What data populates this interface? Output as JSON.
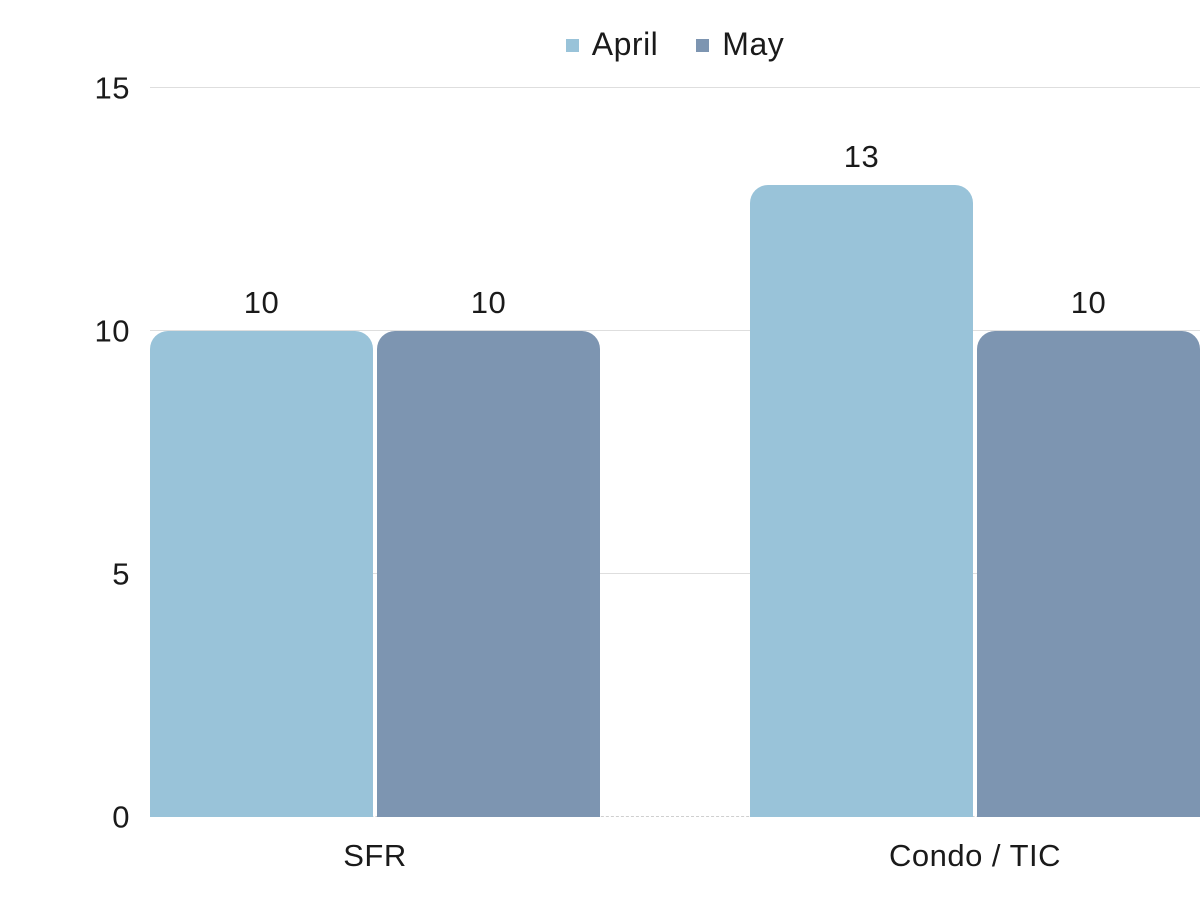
{
  "chart_data": {
    "type": "bar",
    "title": "",
    "xlabel": "",
    "ylabel": "",
    "categories": [
      "SFR",
      "Condo / TIC"
    ],
    "series": [
      {
        "name": "April",
        "color": "#99c3d9",
        "values": [
          10,
          13
        ]
      },
      {
        "name": "May",
        "color": "#7d95b1",
        "values": [
          10,
          10
        ]
      }
    ],
    "ylim": [
      0,
      15
    ],
    "yticks": [
      0,
      5,
      10,
      15
    ],
    "grid": true,
    "legend_position": "top",
    "bar_value_labels": [
      "10",
      "10",
      "13",
      "10"
    ]
  },
  "colors": {
    "background": "#ffffff",
    "text": "#1a1a1a",
    "gridline": "#dedede",
    "april_series": "#99c3d9",
    "may_series": "#7d95b1"
  }
}
